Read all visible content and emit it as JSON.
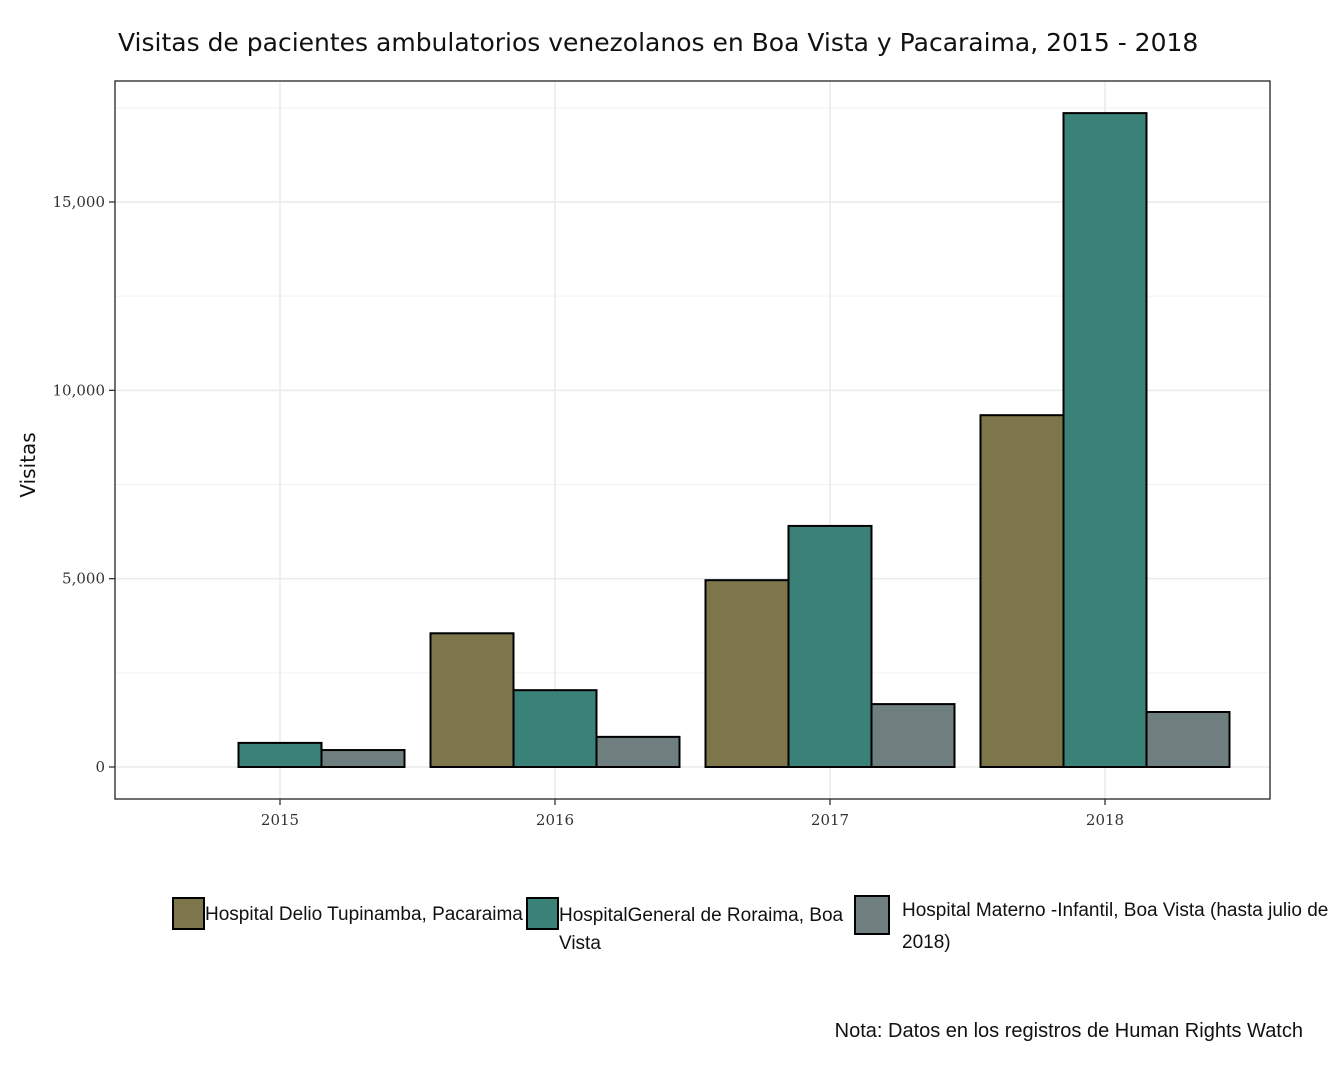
{
  "chart_data": {
    "type": "bar",
    "title": "Visitas de pacientes ambulatorios venezolanos en Boa Vista y Pacaraima, 2015 - 2018",
    "xlabel": "",
    "ylabel": "Visitas",
    "categories": [
      "2015",
      "2016",
      "2017",
      "2018"
    ],
    "ylim": [
      -850,
      18200
    ],
    "yticks": [
      0,
      5000,
      10000,
      15000
    ],
    "ytick_labels": [
      "0",
      "5,000",
      "10,000",
      "15,000"
    ],
    "grid": true,
    "legend_position": "bottom",
    "series": [
      {
        "name": "Hospital Delio Tupinamba, Pacaraima",
        "color": "#7d764b",
        "values": [
          null,
          3550,
          4960,
          9340
        ]
      },
      {
        "name": "HospitalGeneral de Roraima, Boa Vista",
        "color": "#3a8178",
        "values": [
          640,
          2040,
          6400,
          17360
        ]
      },
      {
        "name": "Hospital Materno -Infantil, Boa Vista (hasta julio de 2018)",
        "color": "#6f7f80",
        "values": [
          450,
          800,
          1670,
          1460
        ]
      }
    ]
  },
  "note": "Nota: Datos en los registros de Human Rights Watch"
}
